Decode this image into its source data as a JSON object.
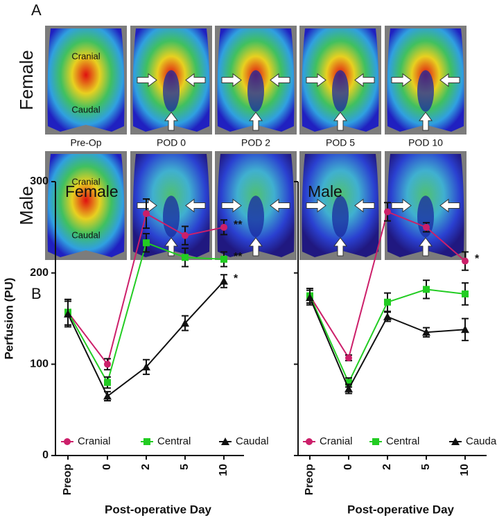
{
  "panel_a": {
    "label": "A",
    "rows": [
      "Female",
      "Male"
    ],
    "columns": [
      "Pre-Op",
      "POD 0",
      "POD 2",
      "POD 5",
      "POD 10"
    ],
    "region_labels": [
      "Cranial",
      "Caudal"
    ]
  },
  "panel_b": {
    "label": "B"
  },
  "chart_data": [
    {
      "type": "line",
      "title": "Female",
      "ylabel": "Perfusion (PU)",
      "xlabel": "Post-operative Day",
      "categories": [
        "Preop",
        "0",
        "2",
        "5",
        "10"
      ],
      "ylim": [
        0,
        300
      ],
      "yticks": [
        0,
        100,
        200,
        300
      ],
      "ytick_labels": true,
      "series": [
        {
          "name": "Cranial",
          "color": "#cc1f6a",
          "marker": "circle",
          "values": [
            157,
            100,
            265,
            241,
            250
          ],
          "errors": [
            14,
            6,
            16,
            10,
            8
          ],
          "annotation": "**"
        },
        {
          "name": "Central",
          "color": "#22cc22",
          "marker": "square",
          "values": [
            157,
            80,
            233,
            217,
            215
          ],
          "errors": [
            14,
            6,
            10,
            10,
            8
          ],
          "annotation": "**"
        },
        {
          "name": "Caudal",
          "color": "#111111",
          "marker": "triangle",
          "values": [
            155,
            65,
            97,
            145,
            191
          ],
          "errors": [
            14,
            5,
            8,
            8,
            7
          ],
          "annotation": "*"
        }
      ]
    },
    {
      "type": "line",
      "title": "Male",
      "xlabel": "Post-operative Day",
      "categories": [
        "Preop",
        "0",
        "2",
        "5",
        "10"
      ],
      "ylim": [
        0,
        300
      ],
      "yticks": [
        0,
        100,
        200,
        300
      ],
      "ytick_labels": false,
      "series": [
        {
          "name": "Cranial",
          "color": "#cc1f6a",
          "marker": "circle",
          "values": [
            175,
            107,
            267,
            250,
            213
          ],
          "errors": [
            8,
            3,
            10,
            5,
            10
          ],
          "annotation": "*"
        },
        {
          "name": "Central",
          "color": "#22cc22",
          "marker": "square",
          "values": [
            175,
            80,
            168,
            182,
            177
          ],
          "errors": [
            8,
            5,
            10,
            10,
            12
          ]
        },
        {
          "name": "Caudal",
          "color": "#111111",
          "marker": "triangle",
          "values": [
            173,
            73,
            152,
            135,
            138
          ],
          "errors": [
            8,
            5,
            5,
            5,
            12
          ]
        }
      ]
    }
  ]
}
